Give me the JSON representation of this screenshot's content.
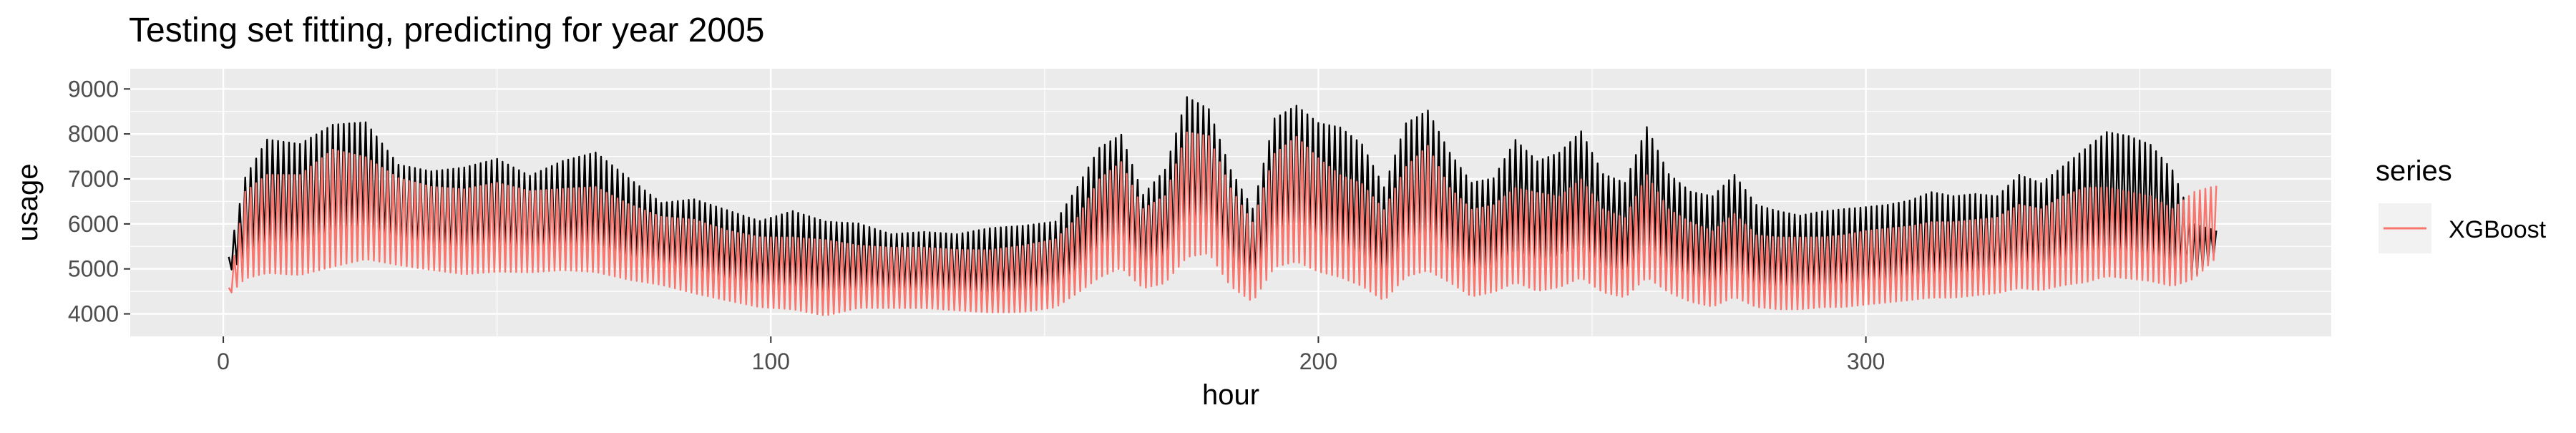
{
  "chart_data": {
    "type": "line",
    "title": "Testing set fitting, predicting for year 2005",
    "xlabel": "hour",
    "ylabel": "usage",
    "xlim": [
      -17,
      385
    ],
    "ylim": [
      3500,
      9450
    ],
    "xticks": [
      0,
      100,
      200,
      300
    ],
    "yticks": [
      4000,
      5000,
      6000,
      7000,
      8000,
      9000
    ],
    "grid": true,
    "legend_title": "series",
    "legend_position": "right",
    "series": [
      {
        "role": "actual",
        "color": "#000000",
        "x": [
          1,
          4,
          8,
          14,
          20,
          26,
          32,
          38,
          44,
          50,
          56,
          62,
          68,
          74,
          80,
          86,
          92,
          98,
          104,
          110,
          116,
          122,
          128,
          134,
          140,
          146,
          152,
          156,
          160,
          164,
          168,
          172,
          176,
          180,
          184,
          188,
          192,
          196,
          200,
          204,
          208,
          212,
          216,
          220,
          224,
          228,
          232,
          236,
          240,
          244,
          248,
          252,
          256,
          260,
          264,
          268,
          272,
          276,
          280,
          284,
          288,
          292,
          296,
          300,
          304,
          308,
          312,
          316,
          320,
          324,
          328,
          332,
          336,
          340,
          344,
          348,
          352,
          356,
          360,
          364
        ],
        "ymax": [
          5300,
          7200,
          8100,
          8000,
          8450,
          8500,
          7500,
          7350,
          7450,
          7650,
          7250,
          7600,
          7800,
          7200,
          6600,
          6700,
          6450,
          6200,
          6450,
          6200,
          6150,
          5900,
          5950,
          5900,
          6050,
          6100,
          6200,
          7000,
          7900,
          8200,
          6800,
          7400,
          9100,
          8800,
          7400,
          6500,
          8600,
          8900,
          8500,
          8400,
          8000,
          7000,
          8500,
          8800,
          7800,
          7100,
          7200,
          8100,
          7600,
          7800,
          8300,
          7300,
          7100,
          8400,
          7300,
          6900,
          6800,
          7300,
          6600,
          6450,
          6350,
          6450,
          6500,
          6550,
          6600,
          6700,
          6900,
          6800,
          6850,
          6800,
          7300,
          7100,
          7500,
          7900,
          8300,
          8200,
          8000,
          7400,
          6100,
          5900
        ],
        "ymin": [
          4900,
          5100,
          5300,
          5200,
          5400,
          5500,
          5200,
          5100,
          5000,
          5100,
          5000,
          5100,
          5150,
          5000,
          4950,
          4800,
          4650,
          4500,
          4400,
          4350,
          4400,
          4300,
          4350,
          4300,
          4250,
          4300,
          4350,
          4800,
          5300,
          5500,
          4900,
          5000,
          5600,
          5700,
          4900,
          4500,
          5400,
          5500,
          5300,
          5200,
          5100,
          4700,
          5200,
          5300,
          5100,
          4800,
          4900,
          5200,
          5000,
          5100,
          5300,
          4900,
          4800,
          5300,
          4900,
          4600,
          4500,
          4700,
          4400,
          4350,
          4300,
          4300,
          4350,
          4350,
          4400,
          4450,
          4500,
          4500,
          4550,
          4500,
          4700,
          4650,
          4750,
          4900,
          5100,
          5100,
          5000,
          4800,
          4700,
          5300
        ]
      },
      {
        "role": "predicted",
        "name": "XGBoost",
        "color": "#F8766D",
        "x": [
          1,
          4,
          8,
          14,
          20,
          26,
          32,
          38,
          44,
          50,
          56,
          62,
          68,
          74,
          80,
          86,
          92,
          98,
          104,
          110,
          116,
          122,
          128,
          134,
          140,
          146,
          152,
          156,
          160,
          164,
          168,
          172,
          176,
          180,
          184,
          188,
          192,
          196,
          200,
          204,
          208,
          212,
          216,
          220,
          224,
          228,
          232,
          236,
          240,
          244,
          248,
          252,
          256,
          260,
          264,
          268,
          272,
          276,
          280,
          284,
          288,
          292,
          296,
          300,
          304,
          308,
          312,
          316,
          320,
          324,
          328,
          332,
          336,
          340,
          344,
          348,
          352,
          356,
          360,
          364
        ],
        "ymax": [
          4600,
          6900,
          7300,
          7300,
          7900,
          7700,
          7200,
          7000,
          6950,
          7100,
          6900,
          6950,
          7000,
          6600,
          6300,
          6250,
          6000,
          5850,
          5850,
          5800,
          5650,
          5600,
          5600,
          5550,
          5550,
          5650,
          5800,
          6300,
          7200,
          7600,
          6500,
          6800,
          8300,
          8200,
          7000,
          6200,
          7800,
          8200,
          7700,
          7300,
          7100,
          6500,
          7500,
          8000,
          7000,
          6500,
          6600,
          7000,
          6900,
          6800,
          7200,
          6500,
          6300,
          7300,
          6500,
          6200,
          6000,
          6400,
          5900,
          5850,
          5850,
          5850,
          5900,
          6000,
          6050,
          6100,
          6200,
          6200,
          6250,
          6300,
          6600,
          6500,
          6800,
          7000,
          7000,
          6900,
          6800,
          6500,
          6900,
          7000
        ],
        "ymin": [
          4400,
          4600,
          4700,
          4650,
          4800,
          5000,
          4900,
          4800,
          4700,
          4750,
          4750,
          4800,
          4750,
          4600,
          4500,
          4300,
          4150,
          4000,
          3950,
          3800,
          4000,
          4000,
          4000,
          3950,
          3900,
          3900,
          4000,
          4300,
          4600,
          4800,
          4400,
          4500,
          5000,
          5100,
          4400,
          4100,
          4800,
          4900,
          4700,
          4600,
          4400,
          4100,
          4600,
          4700,
          4500,
          4200,
          4300,
          4500,
          4300,
          4400,
          4600,
          4300,
          4200,
          4600,
          4300,
          4100,
          4000,
          4200,
          4000,
          3950,
          3950,
          4000,
          4000,
          4050,
          4100,
          4150,
          4200,
          4200,
          4250,
          4300,
          4400,
          4350,
          4450,
          4500,
          4650,
          4600,
          4550,
          4450,
          4600,
          5100
        ]
      }
    ]
  }
}
